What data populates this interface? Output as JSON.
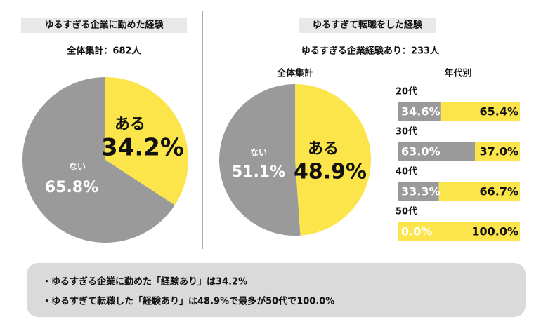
{
  "chart_data": [
    {
      "type": "pie",
      "title": "ゆるすぎる企業に勤めた経験",
      "subtitle": "全体集計：682人",
      "categories": [
        "ある",
        "ない"
      ],
      "values": [
        34.2,
        65.8
      ],
      "value_labels": [
        "34.2%",
        "65.8%"
      ],
      "colors": [
        "#fbe54a",
        "#9a9a9a"
      ]
    },
    {
      "type": "pie",
      "title": "ゆるすぎて転職をした経験",
      "subtitle": "ゆるすぎる企業経験あり：233人",
      "label": "全体集計",
      "categories": [
        "ある",
        "ない"
      ],
      "values": [
        48.9,
        51.1
      ],
      "value_labels": [
        "48.9%",
        "51.1%"
      ],
      "colors": [
        "#fbe54a",
        "#9a9a9a"
      ]
    },
    {
      "type": "stacked_bar",
      "title": "年代別",
      "categories": [
        "20代",
        "30代",
        "40代",
        "50代"
      ],
      "xlim": [
        0,
        100
      ],
      "series": [
        {
          "color": "#9a9a9a",
          "values": [
            34.6,
            63.0,
            33.3,
            0.0
          ],
          "value_labels": [
            "34.6%",
            "63.0%",
            "33.3%",
            "0.0%"
          ]
        },
        {
          "color": "#fbe54a",
          "values": [
            65.4,
            37.0,
            66.7,
            100.0
          ],
          "value_labels": [
            "65.4%",
            "37.0%",
            "66.7%",
            "100.0%"
          ]
        }
      ]
    }
  ],
  "notes": [
    "・ゆるすぎる企業に勤めた「経験あり」は34.2%",
    "・ゆるすぎて転職した「経験あり」は48.9%で最多が50代で100.0%"
  ]
}
